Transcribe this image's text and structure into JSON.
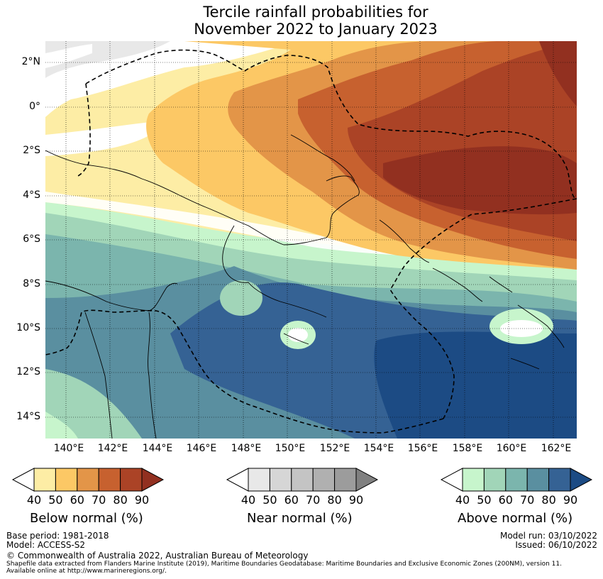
{
  "title_line1": "Tercile rainfall probabilities for",
  "title_line2": "November 2022 to January 2023",
  "lat_labels": [
    "2°N",
    "0°",
    "2°S",
    "4°S",
    "6°S",
    "8°S",
    "10°S",
    "12°S",
    "14°S"
  ],
  "lon_labels": [
    "140°E",
    "142°E",
    "144°E",
    "146°E",
    "148°E",
    "150°E",
    "152°E",
    "154°E",
    "156°E",
    "158°E",
    "160°E",
    "162°E"
  ],
  "colorbars": {
    "below": {
      "title": "Below normal (%)",
      "ticks": [
        "40",
        "50",
        "60",
        "70",
        "80",
        "90"
      ],
      "colors": [
        "#ffffff",
        "#fdeda5",
        "#fcc865",
        "#e39548",
        "#c7612f",
        "#ab4326",
        "#923020"
      ]
    },
    "near": {
      "title": "Near normal (%)",
      "ticks": [
        "40",
        "50",
        "60",
        "70",
        "80",
        "90"
      ],
      "colors": [
        "#ffffff",
        "#e8e8e8",
        "#d6d6d6",
        "#c4c4c4",
        "#b0b0b0",
        "#9c9c9c",
        "#808080"
      ]
    },
    "above": {
      "title": "Above normal (%)",
      "ticks": [
        "40",
        "50",
        "60",
        "70",
        "80",
        "90"
      ],
      "colors": [
        "#ffffff",
        "#c7f5cc",
        "#a1d5b8",
        "#7bb5ad",
        "#5a8fa0",
        "#356294",
        "#1c4b84"
      ]
    }
  },
  "footer": {
    "base_period": "Base period: 1981-2018",
    "model": "Model: ACCESS-S2",
    "model_run": "Model run: 03/10/2022",
    "issued": "Issued: 06/10/2022",
    "copyright": "© Commonwealth of Australia 2022, Australian Bureau of Meteorology",
    "shapefile_line1": "Shapefile data extracted from Flanders Marine Institute (2019), Maritime Boundaries Geodatabase: Maritime Boundaries and Exclusive Economic Zones (200NM), version 11.",
    "shapefile_line2": "Available online at http://www.marineregions.org/."
  }
}
